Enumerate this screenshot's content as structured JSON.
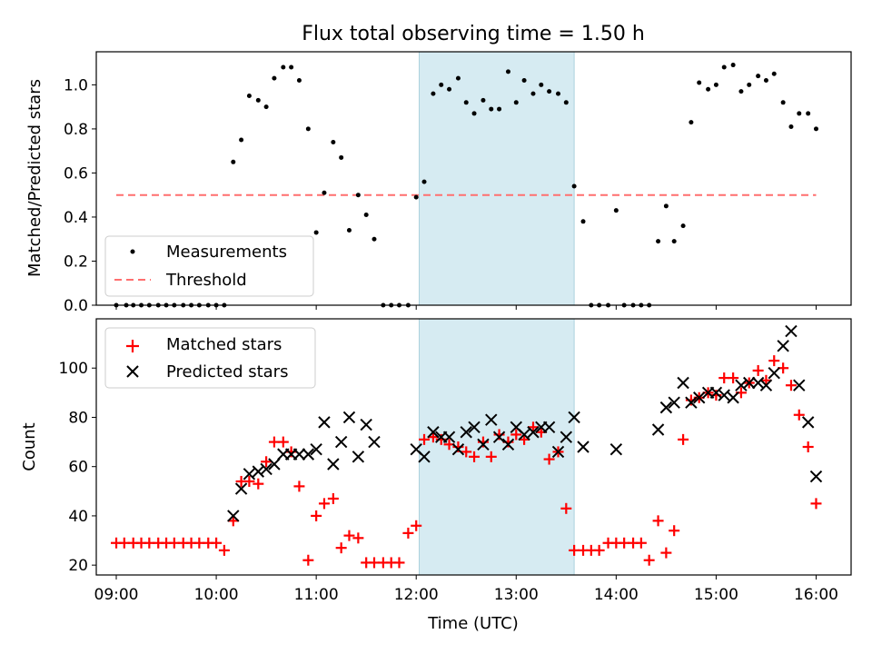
{
  "chart_data": {
    "title": "Flux total observing time = 1.50 h",
    "xlabel": "Time (UTC)",
    "x_units": "decimal hours UTC",
    "xlim": [
      8.8,
      16.35
    ],
    "x_ticks": [
      9,
      10,
      11,
      12,
      13,
      14,
      15,
      16
    ],
    "x_tick_labels": [
      "09:00",
      "10:00",
      "11:00",
      "12:00",
      "13:00",
      "14:00",
      "15:00",
      "16:00"
    ],
    "highlight_span": [
      12.03,
      13.58
    ],
    "panels": [
      {
        "type": "scatter",
        "ylabel": "Matched/Predicted stars",
        "ylim": [
          0,
          1.15
        ],
        "y_ticks": [
          0.0,
          0.2,
          0.4,
          0.6,
          0.8,
          1.0
        ],
        "y_tick_labels": [
          "0.0",
          "0.2",
          "0.4",
          "0.6",
          "0.8",
          "1.0"
        ],
        "legend": [
          "Measurements",
          "Threshold"
        ],
        "threshold": {
          "name": "Threshold",
          "y": 0.5,
          "x": [
            9.0,
            16.0
          ]
        },
        "series": [
          {
            "name": "Measurements",
            "marker": "dot",
            "color": "#000000",
            "x": [
              9.0,
              9.1,
              9.17,
              9.25,
              9.33,
              9.42,
              9.5,
              9.58,
              9.67,
              9.75,
              9.83,
              9.92,
              10.0,
              10.08,
              10.17,
              10.25,
              10.33,
              10.42,
              10.5,
              10.58,
              10.67,
              10.75,
              10.83,
              10.92,
              11.0,
              11.08,
              11.17,
              11.25,
              11.33,
              11.42,
              11.5,
              11.58,
              11.67,
              11.75,
              11.83,
              11.92,
              12.0,
              12.08,
              12.17,
              12.25,
              12.33,
              12.42,
              12.5,
              12.58,
              12.67,
              12.75,
              12.83,
              12.92,
              13.0,
              13.08,
              13.17,
              13.25,
              13.33,
              13.42,
              13.5,
              13.58,
              13.67,
              13.75,
              13.83,
              13.92,
              14.0,
              14.08,
              14.17,
              14.25,
              14.33,
              14.42,
              14.5,
              14.58,
              14.67,
              14.75,
              14.83,
              14.92,
              15.0,
              15.08,
              15.17,
              15.25,
              15.33,
              15.42,
              15.5,
              15.58,
              15.67,
              15.75,
              15.83,
              15.92,
              16.0
            ],
            "y": [
              0.0,
              0.0,
              0.0,
              0.0,
              0.0,
              0.0,
              0.0,
              0.0,
              0.0,
              0.0,
              0.0,
              0.0,
              0.0,
              0.0,
              0.65,
              0.75,
              0.95,
              0.93,
              0.9,
              1.03,
              1.08,
              1.08,
              1.02,
              0.8,
              0.33,
              0.51,
              0.74,
              0.67,
              0.34,
              0.5,
              0.41,
              0.3,
              0.0,
              0.0,
              0.0,
              0.0,
              0.49,
              0.56,
              0.96,
              1.0,
              0.98,
              1.03,
              0.92,
              0.87,
              0.93,
              0.89,
              0.89,
              1.06,
              0.92,
              1.02,
              0.96,
              1.0,
              0.97,
              0.96,
              0.92,
              0.54,
              0.38,
              0.0,
              0.0,
              0.0,
              0.43,
              0.0,
              0.0,
              0.0,
              0.0,
              0.29,
              0.45,
              0.29,
              0.36,
              0.83,
              1.01,
              0.98,
              1.0,
              1.08,
              1.09,
              0.97,
              1.0,
              1.04,
              1.02,
              1.05,
              0.92,
              0.81,
              0.87,
              0.87,
              0.8
            ]
          }
        ]
      },
      {
        "type": "scatter",
        "ylabel": "Count",
        "ylim": [
          16,
          120
        ],
        "y_ticks": [
          20,
          40,
          60,
          80,
          100
        ],
        "y_tick_labels": [
          "20",
          "40",
          "60",
          "80",
          "100"
        ],
        "legend": [
          "Matched stars",
          "Predicted stars"
        ],
        "series": [
          {
            "name": "Matched stars",
            "marker": "plus",
            "color": "#ff0000",
            "x": [
              9.0,
              9.08,
              9.17,
              9.25,
              9.33,
              9.42,
              9.5,
              9.58,
              9.67,
              9.75,
              9.83,
              9.92,
              10.0,
              10.08,
              10.17,
              10.25,
              10.33,
              10.42,
              10.5,
              10.58,
              10.67,
              10.75,
              10.83,
              10.92,
              11.0,
              11.08,
              11.17,
              11.25,
              11.33,
              11.42,
              11.5,
              11.58,
              11.67,
              11.75,
              11.83,
              11.92,
              12.0,
              12.08,
              12.17,
              12.25,
              12.33,
              12.42,
              12.5,
              12.58,
              12.67,
              12.75,
              12.83,
              12.92,
              13.0,
              13.08,
              13.17,
              13.25,
              13.33,
              13.42,
              13.5,
              13.58,
              13.67,
              13.75,
              13.83,
              13.92,
              14.0,
              14.08,
              14.17,
              14.25,
              14.33,
              14.42,
              14.5,
              14.58,
              14.67,
              14.75,
              14.83,
              14.92,
              15.0,
              15.08,
              15.17,
              15.25,
              15.33,
              15.42,
              15.5,
              15.58,
              15.67,
              15.75,
              15.83,
              15.92,
              16.0
            ],
            "y": [
              29,
              29,
              29,
              29,
              29,
              29,
              29,
              29,
              29,
              29,
              29,
              29,
              29,
              26,
              38,
              54,
              54,
              53,
              62,
              70,
              70,
              66,
              52,
              22,
              40,
              45,
              47,
              27,
              32,
              31,
              21,
              21,
              21,
              21,
              21,
              33,
              36,
              71,
              72,
              71,
              69,
              68,
              66,
              64,
              70,
              64,
              73,
              70,
              73,
              71,
              76,
              74,
              63,
              66,
              43,
              26,
              26,
              26,
              26,
              29,
              29,
              29,
              29,
              29,
              22,
              38,
              25,
              34,
              71,
              87,
              88,
              90,
              89,
              96,
              96,
              90,
              94,
              99,
              95,
              103,
              100,
              93,
              81,
              68,
              45
            ]
          },
          {
            "name": "Predicted stars",
            "marker": "x",
            "color": "#000000",
            "x": [
              10.17,
              10.25,
              10.33,
              10.42,
              10.5,
              10.58,
              10.67,
              10.75,
              10.83,
              10.92,
              11.0,
              11.08,
              11.17,
              11.25,
              11.33,
              11.42,
              11.5,
              11.58,
              12.0,
              12.08,
              12.17,
              12.25,
              12.33,
              12.42,
              12.5,
              12.58,
              12.67,
              12.75,
              12.83,
              12.92,
              13.0,
              13.08,
              13.17,
              13.25,
              13.33,
              13.42,
              13.5,
              13.58,
              13.67,
              14.0,
              14.42,
              14.5,
              14.58,
              14.67,
              14.75,
              14.83,
              14.92,
              15.0,
              15.08,
              15.17,
              15.25,
              15.33,
              15.42,
              15.5,
              15.58,
              15.67,
              15.75,
              15.83,
              15.92,
              16.0
            ],
            "y": [
              40,
              51,
              57,
              58,
              59,
              61,
              65,
              65,
              65,
              65,
              67,
              78,
              61,
              70,
              80,
              64,
              77,
              70,
              67,
              64,
              74,
              72,
              72,
              67,
              74,
              76,
              69,
              79,
              72,
              69,
              76,
              73,
              74,
              76,
              76,
              66,
              72,
              80,
              68,
              67,
              75,
              84,
              86,
              94,
              86,
              88,
              90,
              90,
              89,
              88,
              93,
              94,
              94,
              93,
              98,
              109,
              115,
              93,
              78,
              56
            ]
          }
        ]
      }
    ]
  }
}
